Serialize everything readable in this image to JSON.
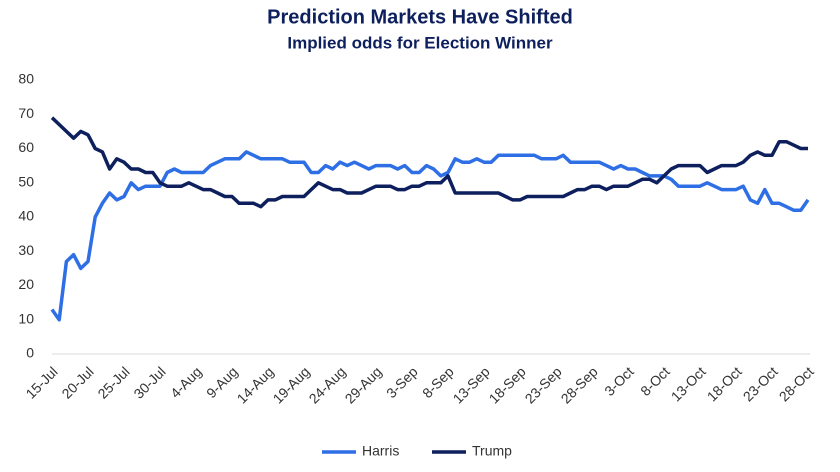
{
  "chart_data": {
    "type": "line",
    "title": "Prediction Markets Have Shifted",
    "subtitle": "Implied odds for Election Winner",
    "categories": [
      "15-Jul",
      null,
      null,
      null,
      null,
      "20-Jul",
      null,
      null,
      null,
      null,
      "25-Jul",
      null,
      null,
      null,
      null,
      "30-Jul",
      null,
      null,
      null,
      null,
      "4-Aug",
      null,
      null,
      null,
      null,
      "9-Aug",
      null,
      null,
      null,
      null,
      "14-Aug",
      null,
      null,
      null,
      null,
      "19-Aug",
      null,
      null,
      null,
      null,
      "24-Aug",
      null,
      null,
      null,
      null,
      "29-Aug",
      null,
      null,
      null,
      null,
      "3-Sep",
      null,
      null,
      null,
      null,
      "8-Sep",
      null,
      null,
      null,
      null,
      "13-Sep",
      null,
      null,
      null,
      null,
      "18-Sep",
      null,
      null,
      null,
      null,
      "23-Sep",
      null,
      null,
      null,
      null,
      "28-Sep",
      null,
      null,
      null,
      null,
      "3-Oct",
      null,
      null,
      null,
      null,
      "8-Oct",
      null,
      null,
      null,
      null,
      "13-Oct",
      null,
      null,
      null,
      null,
      "18-Oct",
      null,
      null,
      null,
      null,
      "23-Oct",
      null,
      null,
      null,
      null,
      "28-Oct"
    ],
    "series": [
      {
        "name": "Harris",
        "color": "#2e6fe6",
        "values": [
          13,
          10,
          27,
          29,
          25,
          27,
          40,
          44,
          47,
          45,
          46,
          50,
          48,
          49,
          49,
          49,
          53,
          54,
          53,
          53,
          53,
          53,
          55,
          56,
          57,
          57,
          57,
          59,
          58,
          57,
          57,
          57,
          57,
          56,
          56,
          56,
          53,
          53,
          55,
          54,
          56,
          55,
          56,
          55,
          54,
          55,
          55,
          55,
          54,
          55,
          53,
          53,
          55,
          54,
          52,
          53,
          57,
          56,
          56,
          57,
          56,
          56,
          58,
          58,
          58,
          58,
          58,
          58,
          57,
          57,
          57,
          58,
          56,
          56,
          56,
          56,
          56,
          55,
          54,
          55,
          54,
          54,
          53,
          52,
          52,
          52,
          51,
          49,
          49,
          49,
          49,
          50,
          49,
          48,
          48,
          48,
          49,
          45,
          44,
          48,
          44,
          44,
          43,
          42,
          42,
          45
        ]
      },
      {
        "name": "Trump",
        "color": "#0d1f5c",
        "values": [
          69,
          67,
          65,
          63,
          65,
          64,
          60,
          59,
          54,
          57,
          56,
          54,
          54,
          53,
          53,
          50,
          49,
          49,
          49,
          50,
          49,
          48,
          48,
          47,
          46,
          46,
          44,
          44,
          44,
          43,
          45,
          45,
          46,
          46,
          46,
          46,
          48,
          50,
          49,
          48,
          48,
          47,
          47,
          47,
          48,
          49,
          49,
          49,
          48,
          48,
          49,
          49,
          50,
          50,
          50,
          52,
          47,
          47,
          47,
          47,
          47,
          47,
          47,
          46,
          45,
          45,
          46,
          46,
          46,
          46,
          46,
          46,
          47,
          48,
          48,
          49,
          49,
          48,
          49,
          49,
          49,
          50,
          51,
          51,
          50,
          52,
          54,
          55,
          55,
          55,
          55,
          53,
          54,
          55,
          55,
          55,
          56,
          58,
          59,
          58,
          58,
          62,
          62,
          61,
          60,
          60
        ]
      }
    ],
    "ylim": [
      0,
      80
    ],
    "yticks": [
      0,
      10,
      20,
      30,
      40,
      50,
      60,
      70,
      80
    ],
    "grid": false
  }
}
